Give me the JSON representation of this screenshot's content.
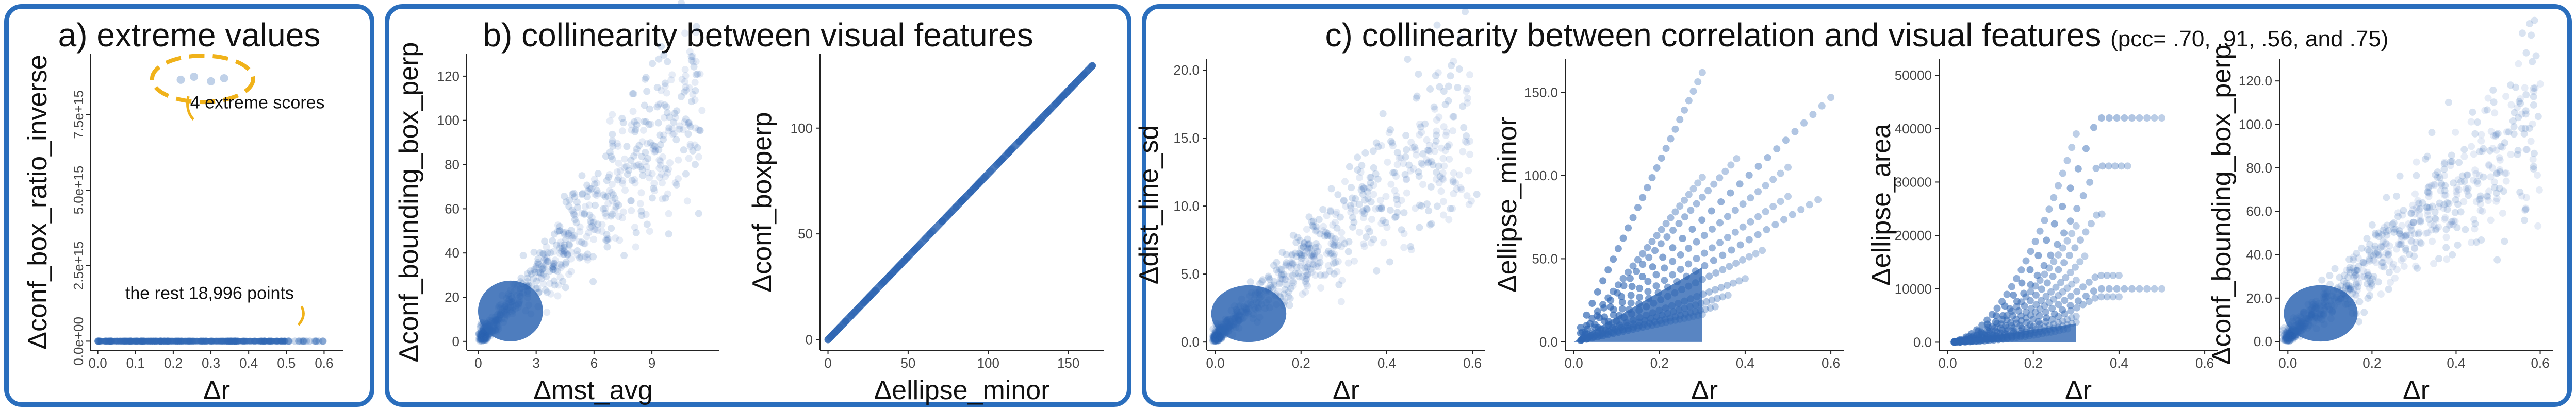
{
  "panels": {
    "a": {
      "title": "a) extreme values"
    },
    "b": {
      "title": "b) collinearity between visual features"
    },
    "c": {
      "title": "c) collinearity between correlation and visual features",
      "note": "(pcc= .70, .91, .56, and .75)"
    }
  },
  "colors": {
    "point": "#2f66b3",
    "frame": "#2a6ebd",
    "highlight": "#f0b21a"
  },
  "chart_data": [
    {
      "id": "a",
      "type": "scatter",
      "xlabel": "Δr",
      "ylabel": "Δconf_box_ratio_inverse",
      "xlim": [
        -0.02,
        0.65
      ],
      "xticks": [
        0.0,
        0.1,
        0.2,
        0.3,
        0.4,
        0.5,
        0.6
      ],
      "ylim": [
        -300000000000000.0,
        9500000000000000.0
      ],
      "yticks": [
        0,
        2500000000000000.0,
        5000000000000000.0,
        7500000000000000.0
      ],
      "ytick_labels": [
        "0.0e+00",
        "2.5e+15",
        "5.0e+15",
        "7.5e+15"
      ],
      "annotations": [
        "4 extreme scores",
        "the rest 18,996 points"
      ],
      "outliers": [
        [
          0.22,
          8650000000000000.0
        ],
        [
          0.255,
          8750000000000000.0
        ],
        [
          0.3,
          8600000000000000.0
        ],
        [
          0.335,
          8700000000000000.0
        ]
      ],
      "band": {
        "x": [
          0.0,
          0.6
        ],
        "y": 0
      }
    },
    {
      "id": "b1",
      "type": "scatter",
      "xlabel": "Δmst_avg",
      "ylabel": "Δconf_bounding_box_perp",
      "xlim": [
        -0.6,
        12.5
      ],
      "xticks": [
        0,
        3,
        6,
        9
      ],
      "ylim": [
        -4,
        130
      ],
      "yticks": [
        0,
        20,
        40,
        60,
        80,
        100,
        120
      ],
      "shape": "cone",
      "mode": "linear",
      "x0": 0.2,
      "x1": 11.5,
      "y0": 0,
      "y1": 125
    },
    {
      "id": "b2",
      "type": "scatter",
      "xlabel": "Δellipse_minor",
      "ylabel": "Δconf_boxperp",
      "xlim": [
        -5,
        172
      ],
      "xticks": [
        0,
        50,
        100,
        150
      ],
      "ylim": [
        -5,
        135
      ],
      "yticks": [
        0,
        50,
        100
      ],
      "shape": "line",
      "slope": 0.785,
      "x_end": 165
    },
    {
      "id": "c1",
      "type": "scatter",
      "xlabel": "Δr",
      "ylabel": "Δdist_line_sd",
      "xlim": [
        -0.02,
        0.63
      ],
      "xticks": [
        0.0,
        0.2,
        0.4,
        0.6
      ],
      "ylim": [
        -0.6,
        20.8
      ],
      "yticks": [
        0,
        5,
        10,
        15,
        20
      ],
      "shape": "cone",
      "mode": "linear",
      "x0": 0.0,
      "x1": 0.6,
      "y0": 0,
      "y1": 19
    },
    {
      "id": "c2",
      "type": "scatter",
      "xlabel": "Δr",
      "ylabel": "Δellipse_minor",
      "xlim": [
        -0.02,
        0.63
      ],
      "xticks": [
        0.0,
        0.2,
        0.4,
        0.6
      ],
      "ylim": [
        -5,
        170
      ],
      "yticks": [
        0,
        50,
        100,
        150
      ],
      "shape": "fan",
      "mode": "linear",
      "rays": [
        {
          "slope": 150,
          "end": 0.57
        },
        {
          "slope": 245,
          "end": 0.6
        },
        {
          "slope": 290,
          "end": 0.38
        },
        {
          "slope": 330,
          "end": 0.3
        },
        {
          "slope": 540,
          "end": 0.3
        },
        {
          "slope": 210,
          "end": 0.5
        },
        {
          "slope": 175,
          "end": 0.5
        },
        {
          "slope": 125,
          "end": 0.44
        },
        {
          "slope": 95,
          "end": 0.4
        },
        {
          "slope": 78,
          "end": 0.36
        },
        {
          "slope": 64,
          "end": 0.33
        },
        {
          "slope": 55,
          "end": 0.3
        }
      ]
    },
    {
      "id": "c3",
      "type": "scatter",
      "xlabel": "Δr",
      "ylabel": "Δellipse_area",
      "xlim": [
        -0.02,
        0.63
      ],
      "xticks": [
        0.0,
        0.2,
        0.4,
        0.6
      ],
      "ylim": [
        -1500,
        53000
      ],
      "yticks": [
        0,
        10000,
        20000,
        30000,
        40000,
        50000
      ],
      "shape": "fan",
      "mode": "power",
      "rays": [
        {
          "scale": 52000,
          "end": 0.3
        },
        {
          "scale": 42000,
          "end": 0.5
        },
        {
          "scale": 33000,
          "end": 0.42
        },
        {
          "scale": 29000,
          "end": 0.3
        },
        {
          "scale": 24000,
          "end": 0.36
        },
        {
          "scale": 19000,
          "end": 0.32
        },
        {
          "scale": 15500,
          "end": 0.3
        },
        {
          "scale": 12500,
          "end": 0.4
        },
        {
          "scale": 10000,
          "end": 0.5
        },
        {
          "scale": 8500,
          "end": 0.4
        },
        {
          "scale": 6500,
          "end": 0.3
        },
        {
          "scale": 5000,
          "end": 0.3
        },
        {
          "scale": 3800,
          "end": 0.28
        }
      ]
    },
    {
      "id": "c4",
      "type": "scatter",
      "xlabel": "Δr",
      "ylabel": "Δconf_bounding_box_perp",
      "xlim": [
        -0.02,
        0.63
      ],
      "xticks": [
        0.0,
        0.2,
        0.4,
        0.6
      ],
      "ylim": [
        -4,
        130
      ],
      "yticks": [
        0,
        20,
        40,
        60,
        80,
        100,
        120
      ],
      "shape": "cone",
      "mode": "linear",
      "x0": 0.0,
      "x1": 0.6,
      "y0": 0,
      "y1": 118
    }
  ]
}
